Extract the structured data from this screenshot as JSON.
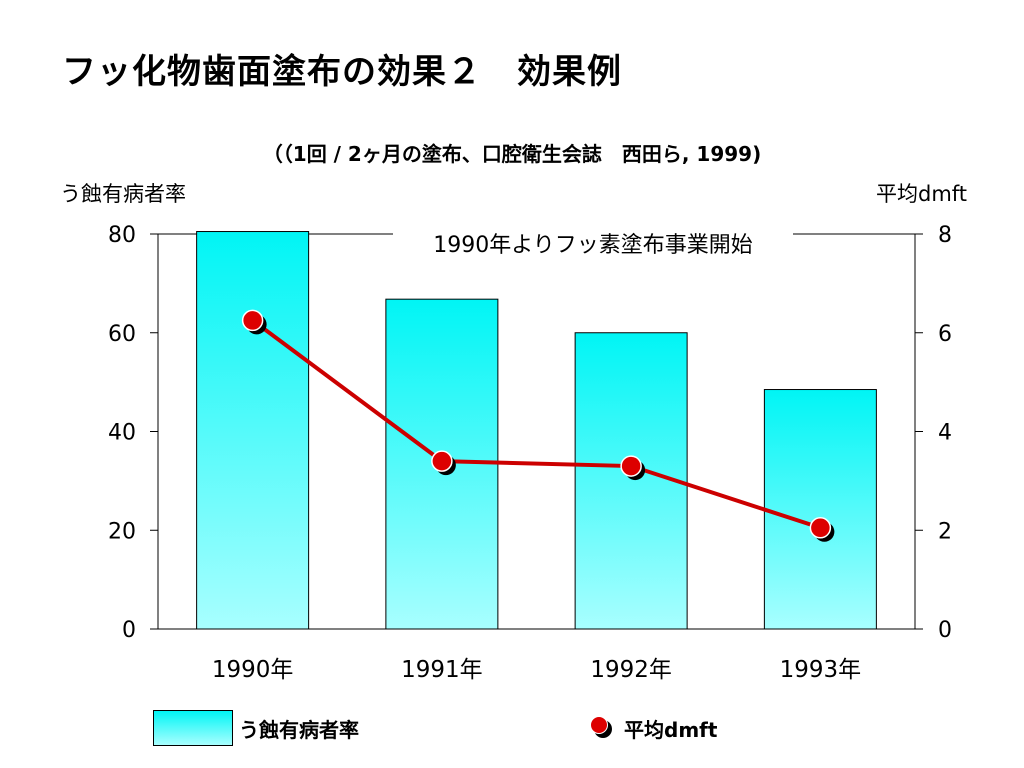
{
  "slide": {
    "title": "フッ化物歯面塗布の効果２　効果例",
    "subtitle": "（（1回 / 2ヶ月の塗布、口腔衛生会誌　西田ら, 1999)"
  },
  "chart_data": {
    "type": "bar+line",
    "categories": [
      "1990年",
      "1991年",
      "1992年",
      "1993年"
    ],
    "series": [
      {
        "name": "う蝕有病者率",
        "type": "bar",
        "axis": "left",
        "values": [
          80.5,
          66.8,
          60.0,
          48.5
        ],
        "color": "#00f5f5"
      },
      {
        "name": "平均dmft",
        "type": "line",
        "axis": "right",
        "values": [
          6.25,
          3.4,
          3.3,
          2.05
        ],
        "color": "#cc0000"
      }
    ],
    "y_left": {
      "label": "う蝕有病者率",
      "ylim": [
        0,
        80
      ],
      "ticks": [
        "0",
        "20",
        "40",
        "60",
        "80"
      ]
    },
    "y_right": {
      "label": "平均dmft",
      "ylim": [
        0,
        8
      ],
      "ticks": [
        "0",
        "2",
        "4",
        "6",
        "8"
      ]
    },
    "annotation": "1990年よりフッ素塗布事業開始",
    "grid": false,
    "legend": "bottom"
  },
  "legend": {
    "bar_label": "う蝕有病者率",
    "line_label": "平均dmft"
  }
}
